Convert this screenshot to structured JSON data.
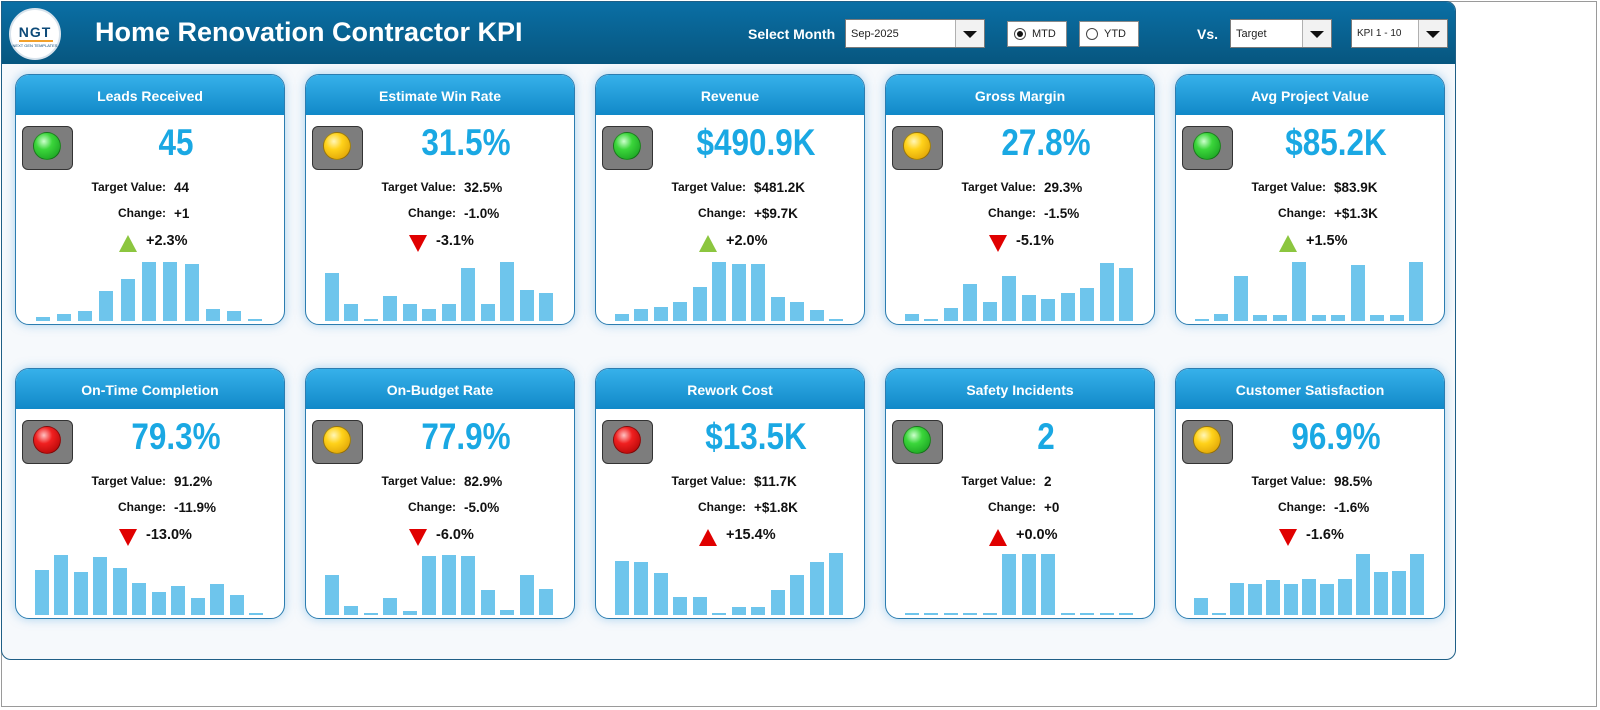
{
  "header": {
    "logo_text": "NGT",
    "logo_sub": "NEXT GEN TEMPLATES",
    "title": "Home Renovation Contractor KPI",
    "select_month_label": "Select Month",
    "month_value": "Sep-2025",
    "mtd_label": "MTD",
    "ytd_label": "YTD",
    "period_selected": "MTD",
    "vs_label": "Vs.",
    "compare_value": "Target",
    "kpi_range_value": "KPI 1 - 10"
  },
  "colors": {
    "header_bg": "#07567f",
    "card_head": "#1a9ad6",
    "value_blue": "#1aa8e3",
    "spark_bar": "#6ec5ec",
    "up_green": "#8cc63f",
    "alert_red": "#e00000"
  },
  "cards": [
    {
      "title": "Leads Received",
      "value": "45",
      "light": "green",
      "target_label": "Target Value:",
      "target": "44",
      "change_label": "Change:",
      "change": "+1",
      "arrow": "up-green",
      "pct": "+2.3%",
      "spark": [
        0.07,
        0.12,
        0.16,
        0.48,
        0.68,
        0.95,
        0.95,
        0.92,
        0.2,
        0.16,
        0.03
      ]
    },
    {
      "title": "Estimate Win Rate",
      "value": "31.5%",
      "light": "yellow",
      "target_label": "Target Value:",
      "target": "32.5%",
      "change_label": "Change:",
      "change": "-1.0%",
      "arrow": "down-red",
      "pct": "-3.1%",
      "spark": [
        0.77,
        0.27,
        0.02,
        0.4,
        0.27,
        0.2,
        0.27,
        0.86,
        0.27,
        0.95,
        0.5,
        0.45
      ]
    },
    {
      "title": "Revenue",
      "value": "$490.9K",
      "light": "green",
      "target_label": "Target Value:",
      "target": "$481.2K",
      "change_label": "Change:",
      "change": "+$9.7K",
      "arrow": "up-green",
      "pct": "+2.0%",
      "spark": [
        0.12,
        0.2,
        0.23,
        0.31,
        0.55,
        0.95,
        0.92,
        0.92,
        0.38,
        0.3,
        0.17,
        0.02
      ]
    },
    {
      "title": "Gross Margin",
      "value": "27.8%",
      "light": "yellow",
      "target_label": "Target Value:",
      "target": "29.3%",
      "change_label": "Change:",
      "change": "-1.5%",
      "arrow": "down-red",
      "pct": "-5.1%",
      "spark": [
        0.12,
        0.02,
        0.21,
        0.59,
        0.3,
        0.72,
        0.42,
        0.35,
        0.45,
        0.53,
        0.93,
        0.85
      ]
    },
    {
      "title": "Avg Project Value",
      "value": "$85.2K",
      "light": "green",
      "target_label": "Target Value:",
      "target": "$83.9K",
      "change_label": "Change:",
      "change": "+$1.3K",
      "arrow": "up-green",
      "pct": "+1.5%",
      "spark": [
        0.02,
        0.12,
        0.72,
        0.1,
        0.1,
        0.95,
        0.1,
        0.1,
        0.9,
        0.1,
        0.1,
        0.95
      ]
    },
    {
      "title": "On-Time Completion",
      "value": "79.3%",
      "light": "red",
      "target_label": "Target Value:",
      "target": "91.2%",
      "change_label": "Change:",
      "change": "-11.9%",
      "arrow": "down-red",
      "pct": "-13.0%",
      "spark": [
        0.73,
        0.97,
        0.69,
        0.94,
        0.76,
        0.51,
        0.37,
        0.46,
        0.27,
        0.5,
        0.33,
        0.02
      ]
    },
    {
      "title": "On-Budget Rate",
      "value": "77.9%",
      "light": "yellow",
      "target_label": "Target Value:",
      "target": "82.9%",
      "change_label": "Change:",
      "change": "-5.0%",
      "arrow": "down-red",
      "pct": "-6.0%",
      "spark": [
        0.64,
        0.15,
        0.02,
        0.27,
        0.06,
        0.95,
        0.97,
        0.95,
        0.4,
        0.08,
        0.64,
        0.42
      ]
    },
    {
      "title": "Rework Cost",
      "value": "$13.5K",
      "light": "red",
      "target_label": "Target Value:",
      "target": "$11.7K",
      "change_label": "Change:",
      "change": "+$1.8K",
      "arrow": "up-red",
      "pct": "+15.4%",
      "spark": [
        0.87,
        0.85,
        0.67,
        0.29,
        0.29,
        0.04,
        0.13,
        0.13,
        0.4,
        0.65,
        0.85,
        1.0
      ]
    },
    {
      "title": "Safety Incidents",
      "value": "2",
      "light": "green",
      "target_label": "Target Value:",
      "target": "2",
      "change_label": "Change:",
      "change": "+0",
      "arrow": "up-red",
      "pct": "+0.0%",
      "spark": [
        0.02,
        0.02,
        0.02,
        0.02,
        0.02,
        0.98,
        0.98,
        0.98,
        0.02,
        0.02,
        0.02,
        0.02
      ]
    },
    {
      "title": "Customer Satisfaction",
      "value": "96.9%",
      "light": "yellow",
      "target_label": "Target Value:",
      "target": "98.5%",
      "change_label": "Change:",
      "change": "-1.6%",
      "arrow": "down-red",
      "pct": "-1.6%",
      "spark": [
        0.27,
        0.02,
        0.52,
        0.5,
        0.56,
        0.5,
        0.58,
        0.5,
        0.58,
        0.98,
        0.7,
        0.71,
        0.98
      ]
    }
  ]
}
